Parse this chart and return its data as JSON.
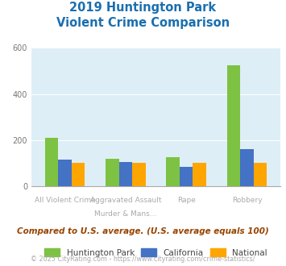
{
  "title_line1": "2019 Huntington Park",
  "title_line2": "Violent Crime Comparison",
  "title_color": "#1a6faf",
  "cat_labels_top": [
    "",
    "Aggravated Assault",
    "Rape",
    ""
  ],
  "cat_labels_bot": [
    "All Violent Crime",
    "Murder & Mans...",
    "",
    "Robbery"
  ],
  "series": {
    "Huntington Park": [
      210,
      120,
      125,
      525
    ],
    "California": [
      115,
      105,
      85,
      162
    ],
    "National": [
      100,
      100,
      100,
      100
    ]
  },
  "colors": {
    "Huntington Park": "#7dc242",
    "California": "#4472c4",
    "National": "#ffa500"
  },
  "ylim": [
    0,
    600
  ],
  "yticks": [
    0,
    200,
    400,
    600
  ],
  "background_color": "#ddeef6",
  "grid_color": "#ffffff",
  "subtitle": "Compared to U.S. average. (U.S. average equals 100)",
  "subtitle_color": "#994400",
  "footer": "© 2025 CityRating.com - https://www.cityrating.com/crime-statistics/",
  "footer_color": "#aaaaaa",
  "legend_labels": [
    "Huntington Park",
    "California",
    "National"
  ]
}
